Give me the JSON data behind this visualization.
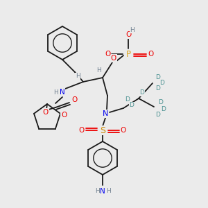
{
  "bg_color": "#ebebeb",
  "C": "#1a1a1a",
  "H": "#708090",
  "N": "#0000ee",
  "O": "#ee0000",
  "P": "#daa520",
  "S": "#cc8800",
  "D": "#4a9090"
}
